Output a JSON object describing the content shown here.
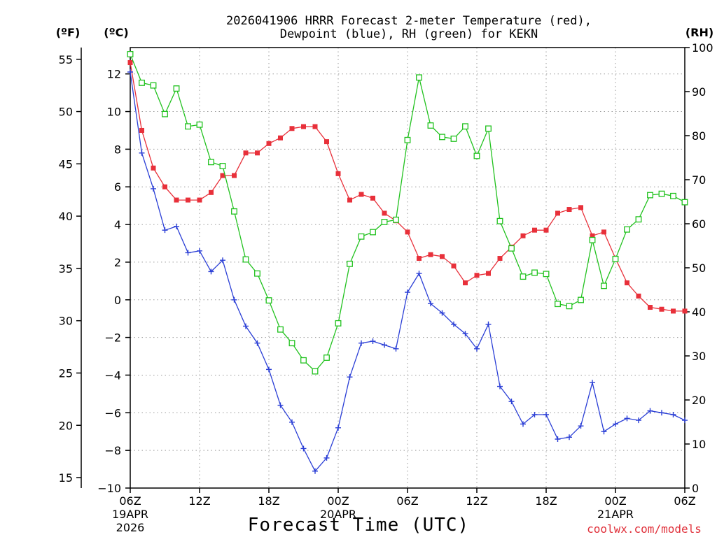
{
  "chart_data": {
    "type": "line",
    "title": [
      "2026041906 HRRR Forecast 2-meter Temperature (red),",
      "Dewpoint (blue), RH (green) for KEKN"
    ],
    "xlabel": "Forecast Time (UTC)",
    "credit": "coolwx.com/models",
    "units": {
      "left_f": "(ºF)",
      "left_c": "(ºC)",
      "right": "(RH)"
    },
    "x_range_hours": [
      0,
      48
    ],
    "x_ticks": [
      {
        "hour": 0,
        "label": "06Z"
      },
      {
        "hour": 6,
        "label": "12Z"
      },
      {
        "hour": 12,
        "label": "18Z"
      },
      {
        "hour": 18,
        "label": "00Z"
      },
      {
        "hour": 24,
        "label": "06Z"
      },
      {
        "hour": 30,
        "label": "12Z"
      },
      {
        "hour": 36,
        "label": "18Z"
      },
      {
        "hour": 42,
        "label": "00Z"
      },
      {
        "hour": 48,
        "label": "06Z"
      }
    ],
    "date_labels": [
      {
        "hour": 0,
        "lines": [
          "19APR",
          "2026"
        ]
      },
      {
        "hour": 18,
        "lines": [
          "20APR"
        ]
      },
      {
        "hour": 42,
        "lines": [
          "21APR"
        ]
      }
    ],
    "y_left_c": {
      "range": [
        -10,
        13.4
      ],
      "ticks": [
        -10,
        -8,
        -6,
        -4,
        -2,
        0,
        2,
        4,
        6,
        8,
        10,
        12
      ]
    },
    "y_left_f": {
      "ticks": [
        15,
        20,
        25,
        30,
        35,
        40,
        45,
        50,
        55
      ]
    },
    "y_right_rh": {
      "range": [
        0,
        100
      ],
      "ticks": [
        0,
        10,
        20,
        30,
        40,
        50,
        60,
        70,
        80,
        90,
        100
      ]
    },
    "grid": true,
    "series": [
      {
        "name": "Temperature",
        "color": "#e8303a",
        "marker": "filled-square",
        "axis": "left_c",
        "values": [
          12.6,
          9.0,
          7.0,
          6.0,
          5.3,
          5.3,
          5.3,
          5.7,
          6.6,
          6.6,
          7.8,
          7.8,
          8.3,
          8.6,
          9.1,
          9.2,
          9.2,
          8.4,
          6.7,
          5.3,
          5.6,
          5.4,
          4.6,
          4.2,
          3.6,
          2.2,
          2.4,
          2.3,
          1.8,
          0.9,
          1.3,
          1.4,
          2.2,
          2.8,
          3.4,
          3.7,
          3.7,
          4.6,
          4.8,
          4.9,
          3.4,
          3.6,
          2.2,
          0.9,
          0.2,
          -0.4,
          -0.5,
          -0.6,
          -0.6
        ]
      },
      {
        "name": "Dewpoint",
        "color": "#2b3fd6",
        "marker": "plus",
        "axis": "left_c",
        "values": [
          12.1,
          7.8,
          5.9,
          3.7,
          3.9,
          2.5,
          2.6,
          1.5,
          2.1,
          0.0,
          -1.4,
          -2.3,
          -3.7,
          -5.6,
          -6.5,
          -7.9,
          -9.1,
          -8.4,
          -6.8,
          -4.1,
          -2.3,
          -2.2,
          -2.4,
          -2.6,
          0.4,
          1.4,
          -0.2,
          -0.7,
          -1.3,
          -1.8,
          -2.6,
          -1.3,
          -4.6,
          -5.4,
          -6.6,
          -6.1,
          -6.1,
          -7.4,
          -7.3,
          -6.7,
          -4.4,
          -7.0,
          -6.6,
          -6.3,
          -6.4,
          -5.9,
          -6.0,
          -6.1,
          -6.4
        ]
      },
      {
        "name": "RH",
        "color": "#22c21f",
        "marker": "open-square",
        "axis": "right",
        "values": [
          98.5,
          92.0,
          91.4,
          84.9,
          90.7,
          82.1,
          82.5,
          74.0,
          73.1,
          62.8,
          51.9,
          48.7,
          42.6,
          36.0,
          32.9,
          29.0,
          26.5,
          29.6,
          37.4,
          50.9,
          57.1,
          58.1,
          60.4,
          60.9,
          79.0,
          93.2,
          82.3,
          79.7,
          79.3,
          82.1,
          75.4,
          81.6,
          60.6,
          54.4,
          48.0,
          48.9,
          48.6,
          41.8,
          41.3,
          42.7,
          56.3,
          45.9,
          52.0,
          58.7,
          61.0,
          66.5,
          66.8,
          66.3,
          64.9
        ]
      }
    ]
  }
}
